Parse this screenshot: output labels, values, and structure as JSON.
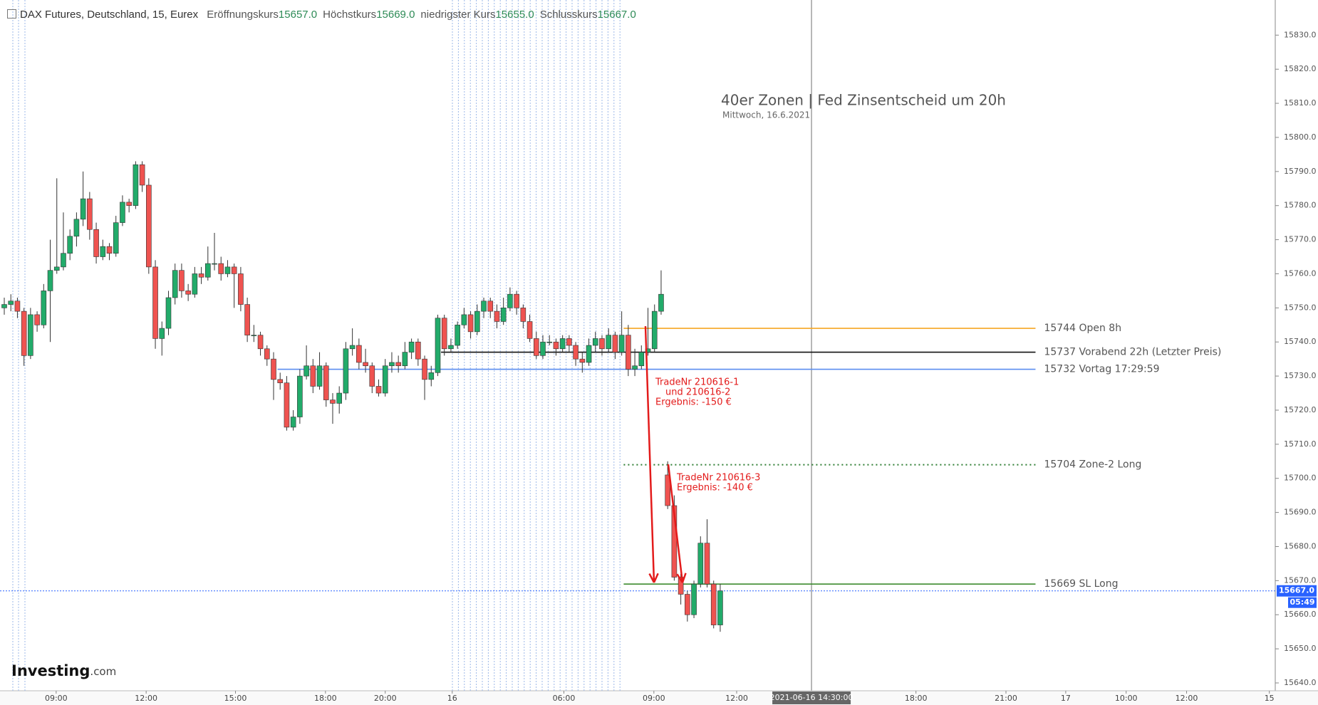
{
  "chart_data": {
    "type": "candlestick",
    "symbol": "DAX Futures, Deutschland, 15, Eurex",
    "ohlc_legend": [
      {
        "label": "Eröffnungskurs",
        "value": "15657.0"
      },
      {
        "label": "Höchstkurs",
        "value": "15669.0"
      },
      {
        "label": "niedrigster Kurs",
        "value": "15655.0"
      },
      {
        "label": "Schlusskurs",
        "value": "15667.0"
      }
    ],
    "title": "40er Zonen | Fed Zinsentscheid um 20h",
    "subtitle": "Mittwoch, 16.6.2021",
    "up_color": "#22ab6a",
    "down_color": "#ef5350",
    "ohlc": [
      [
        15750,
        15753,
        15748,
        15751
      ],
      [
        15751,
        15754,
        15749,
        15752
      ],
      [
        15752,
        15753,
        15747,
        15749
      ],
      [
        15749,
        15750,
        15733,
        15736
      ],
      [
        15736,
        15750,
        15735,
        15748
      ],
      [
        15748,
        15749,
        15743,
        15745
      ],
      [
        15745,
        15757,
        15744,
        15755
      ],
      [
        15755,
        15770,
        15740,
        15761
      ],
      [
        15761,
        15788,
        15760,
        15762
      ],
      [
        15762,
        15778,
        15761,
        15766
      ],
      [
        15766,
        15773,
        15764,
        15771
      ],
      [
        15771,
        15778,
        15768,
        15776
      ],
      [
        15776,
        15790,
        15774,
        15782
      ],
      [
        15782,
        15784,
        15770,
        15773
      ],
      [
        15773,
        15775,
        15763,
        15765
      ],
      [
        15765,
        15770,
        15764,
        15768
      ],
      [
        15768,
        15769,
        15764,
        15766
      ],
      [
        15766,
        15777,
        15765,
        15775
      ],
      [
        15775,
        15783,
        15774,
        15781
      ],
      [
        15781,
        15782,
        15778,
        15780
      ],
      [
        15780,
        15793,
        15779,
        15792
      ],
      [
        15792,
        15793,
        15784,
        15786
      ],
      [
        15786,
        15788,
        15760,
        15762
      ],
      [
        15762,
        15764,
        15738,
        15741
      ],
      [
        15741,
        15746,
        15736,
        15744
      ],
      [
        15744,
        15755,
        15742,
        15753
      ],
      [
        15753,
        15763,
        15751,
        15761
      ],
      [
        15761,
        15763,
        15753,
        15755
      ],
      [
        15755,
        15757,
        15752,
        15754
      ],
      [
        15754,
        15762,
        15753,
        15760
      ],
      [
        15760,
        15762,
        15757,
        15759
      ],
      [
        15759,
        15768,
        15758,
        15763
      ],
      [
        15763,
        15772,
        15761,
        15763
      ],
      [
        15763,
        15765,
        15758,
        15760
      ],
      [
        15760,
        15764,
        15759,
        15762
      ],
      [
        15762,
        15763,
        15750,
        15760
      ],
      [
        15760,
        15762,
        15749,
        15751
      ],
      [
        15751,
        15753,
        15740,
        15742
      ],
      [
        15742,
        15745,
        15740,
        15742
      ],
      [
        15742,
        15743,
        15736,
        15738
      ],
      [
        15738,
        15739,
        15733,
        15735
      ],
      [
        15735,
        15737,
        15723,
        15729
      ],
      [
        15729,
        15731,
        15726,
        15728
      ],
      [
        15728,
        15730,
        15714,
        15715
      ],
      [
        15715,
        15720,
        15714,
        15718
      ],
      [
        15718,
        15732,
        15716,
        15730
      ],
      [
        15730,
        15739,
        15729,
        15733
      ],
      [
        15733,
        15735,
        15725,
        15727
      ],
      [
        15727,
        15737,
        15726,
        15733
      ],
      [
        15733,
        15734,
        15721,
        15723
      ],
      [
        15723,
        15725,
        15716,
        15722
      ],
      [
        15722,
        15727,
        15719,
        15725
      ],
      [
        15725,
        15740,
        15723,
        15738
      ],
      [
        15738,
        15744,
        15736,
        15739
      ],
      [
        15739,
        15741,
        15732,
        15734
      ],
      [
        15734,
        15738,
        15731,
        15733
      ],
      [
        15733,
        15734,
        15725,
        15727
      ],
      [
        15727,
        15729,
        15724,
        15725
      ],
      [
        15725,
        15735,
        15724,
        15733
      ],
      [
        15733,
        15737,
        15731,
        15734
      ],
      [
        15734,
        15736,
        15731,
        15733
      ],
      [
        15733,
        15740,
        15732,
        15737
      ],
      [
        15737,
        15741,
        15735,
        15740
      ],
      [
        15740,
        15741,
        15733,
        15735
      ],
      [
        15735,
        15736,
        15723,
        15729
      ],
      [
        15729,
        15733,
        15727,
        15731
      ],
      [
        15731,
        15748,
        15730,
        15747
      ],
      [
        15747,
        15748,
        15736,
        15738
      ],
      [
        15738,
        15741,
        15737,
        15739
      ],
      [
        15739,
        15746,
        15738,
        15745
      ],
      [
        15745,
        15750,
        15744,
        15748
      ],
      [
        15748,
        15749,
        15741,
        15743
      ],
      [
        15743,
        15751,
        15742,
        15749
      ],
      [
        15749,
        15753,
        15747,
        15752
      ],
      [
        15752,
        15753,
        15747,
        15749
      ],
      [
        15749,
        15751,
        15744,
        15746
      ],
      [
        15746,
        15753,
        15745,
        15750
      ],
      [
        15750,
        15756,
        15749,
        15754
      ],
      [
        15754,
        15755,
        15748,
        15750
      ],
      [
        15750,
        15751,
        15744,
        15746
      ],
      [
        15746,
        15748,
        15740,
        15741
      ],
      [
        15741,
        15743,
        15735,
        15736
      ],
      [
        15736,
        15742,
        15735,
        15740
      ],
      [
        15740,
        15742,
        15739,
        15740
      ],
      [
        15740,
        15741,
        15736,
        15738
      ],
      [
        15738,
        15742,
        15737,
        15741
      ],
      [
        15741,
        15742,
        15737,
        15739
      ],
      [
        15739,
        15740,
        15733,
        15735
      ],
      [
        15735,
        15737,
        15731,
        15734
      ],
      [
        15734,
        15741,
        15733,
        15739
      ],
      [
        15739,
        15743,
        15737,
        15741
      ],
      [
        15741,
        15742,
        15736,
        15738
      ],
      [
        15738,
        15744,
        15737,
        15742
      ],
      [
        15742,
        15743,
        15735,
        15737
      ],
      [
        15737,
        15749,
        15736,
        15742
      ],
      [
        15742,
        15745,
        15730,
        15732
      ],
      [
        15732,
        15738,
        15730,
        15733
      ],
      [
        15733,
        15739,
        15732,
        15737
      ],
      [
        15737,
        15750,
        15736,
        15738
      ],
      [
        15738,
        15751,
        15737,
        15749
      ],
      [
        15749,
        15761,
        15748,
        15754
      ],
      [
        15701,
        15705,
        15691,
        15692
      ],
      [
        15692,
        15695,
        15670,
        15671
      ],
      [
        15671,
        15672,
        15663,
        15666
      ],
      [
        15666,
        15667,
        15658,
        15660
      ],
      [
        15660,
        15670,
        15659,
        15669
      ],
      [
        15669,
        15683,
        15668,
        15681
      ],
      [
        15681,
        15688,
        15668,
        15669
      ],
      [
        15669,
        15670,
        15656,
        15657
      ],
      [
        15657,
        15669,
        15655,
        15667
      ]
    ],
    "xlim": [
      -0.65,
      193.5
    ],
    "xticks": [
      {
        "value": 7.9,
        "label": "09:00"
      },
      {
        "value": 21.6,
        "label": "12:00"
      },
      {
        "value": 35.2,
        "label": "15:00"
      },
      {
        "value": 48.9,
        "label": "18:00"
      },
      {
        "value": 58,
        "label": "20:00"
      },
      {
        "value": 68.2,
        "label": "16"
      },
      {
        "value": 85.2,
        "label": "06:00"
      },
      {
        "value": 98.9,
        "label": "09:00"
      },
      {
        "value": 111.5,
        "label": "12:00"
      },
      {
        "value": 138.8,
        "label": "18:00"
      },
      {
        "value": 152.5,
        "label": "21:00"
      },
      {
        "value": 161.6,
        "label": "17"
      },
      {
        "value": 170.8,
        "label": "10:00"
      },
      {
        "value": 180,
        "label": "12:00"
      },
      {
        "value": 192.6,
        "label": "15"
      }
    ],
    "crosshair": {
      "value": 122.9,
      "label": "2021-06-16 14:30:00"
    },
    "ylim": [
      15637.7,
      15840.3
    ],
    "yticks": [
      {
        "value": 15640,
        "label": "15640.0"
      },
      {
        "value": 15650,
        "label": "15650.0"
      },
      {
        "value": 15660,
        "label": "15660.0"
      },
      {
        "value": 15670,
        "label": "15670.0"
      },
      {
        "value": 15680,
        "label": "15680.0"
      },
      {
        "value": 15690,
        "label": "15690.0"
      },
      {
        "value": 15700,
        "label": "15700.0"
      },
      {
        "value": 15710,
        "label": "15710.0"
      },
      {
        "value": 15720,
        "label": "15720.0"
      },
      {
        "value": 15730,
        "label": "15730.0"
      },
      {
        "value": 15740,
        "label": "15740.0"
      },
      {
        "value": 15750,
        "label": "15750.0"
      },
      {
        "value": 15760,
        "label": "15760.0"
      },
      {
        "value": 15770,
        "label": "15770.0"
      },
      {
        "value": 15780,
        "label": "15780.0"
      },
      {
        "value": 15790,
        "label": "15790.0"
      },
      {
        "value": 15800,
        "label": "15800.0"
      },
      {
        "value": 15810,
        "label": "15810.0"
      },
      {
        "value": 15820,
        "label": "15820.0"
      },
      {
        "value": 15830,
        "label": "15830.0"
      }
    ],
    "levels": [
      {
        "value": 15744,
        "label": "15744 Open 8h",
        "color": "#f5a623",
        "style": "solid",
        "from": 94.3,
        "to": 157
      },
      {
        "value": 15737,
        "label": "15737 Vorabend 22h (Letzter Preis)",
        "color": "#111111",
        "style": "solid",
        "from": 66.5,
        "to": 157
      },
      {
        "value": 15732,
        "label": "15732 Vortag 17:29:59",
        "color": "#5b8def",
        "style": "solid",
        "from": 41.6,
        "to": 157
      },
      {
        "value": 15704,
        "label": "15704 Zone-2 Long",
        "color": "#2e7d32",
        "style": "dotted",
        "from": 94.3,
        "to": 157
      },
      {
        "value": 15669,
        "label": "15669 SL Long",
        "color": "#3d8b2f",
        "style": "solid",
        "from": 94.3,
        "to": 157
      }
    ],
    "last_price": {
      "value": 15667,
      "label": "15667.0",
      "timer": "05:49",
      "color": "#2962ff"
    },
    "trades": [
      {
        "lines": [
          "TradeNr 210616-1",
          "und 210616-2",
          "Ergebnis: -150 €"
        ]
      },
      {
        "lines": [
          "TradeNr 210616-3",
          "Ergebnis: -140 €"
        ]
      }
    ],
    "watermark": [
      "Investing",
      ".com"
    ]
  }
}
